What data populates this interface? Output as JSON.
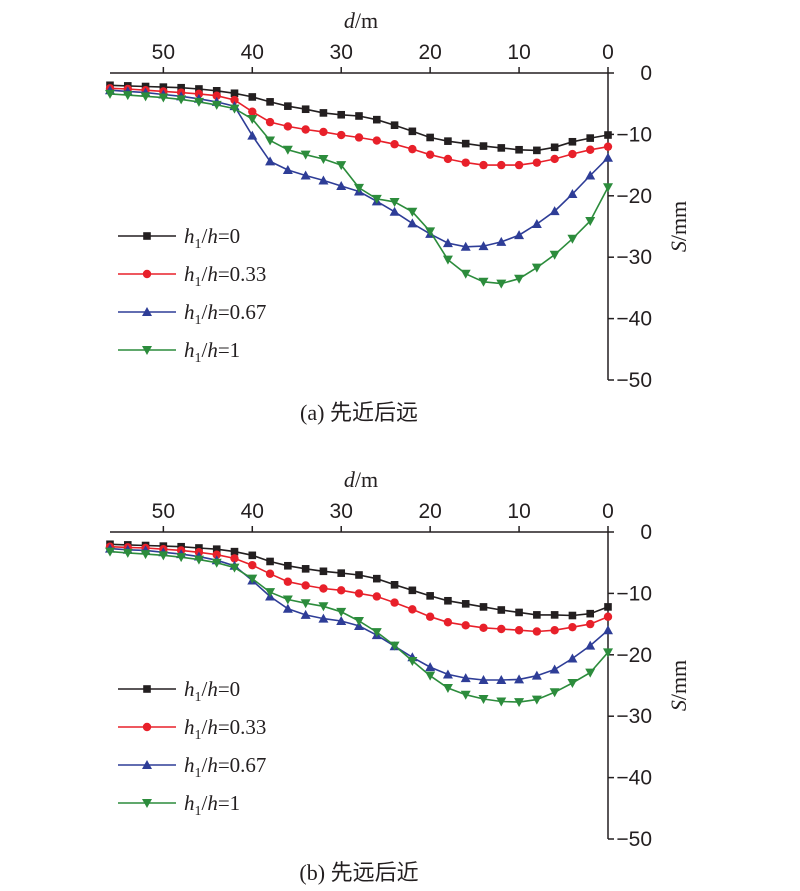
{
  "chart_data": [
    {
      "type": "line",
      "caption": "(a) 先近后远",
      "xlabel": {
        "var": "d",
        "unit": "/m"
      },
      "ylabel": {
        "var": "S",
        "unit": "/mm"
      },
      "x_axis_position": "top",
      "y_axis_position": "right",
      "x_reversed": true,
      "xlim": [
        56,
        0
      ],
      "ylim": [
        -50,
        0
      ],
      "xticks": [
        50,
        40,
        30,
        20,
        10,
        0
      ],
      "yticks": [
        0,
        -10,
        -20,
        -30,
        -40,
        -50
      ],
      "grid": false,
      "legend_position": "left-middle",
      "series": [
        {
          "name": {
            "a": "h",
            "sub": "1",
            "b": "/",
            "c": "h",
            "d": "=0"
          },
          "color": "#231f20",
          "marker": "square",
          "x": [
            56,
            54,
            52,
            50,
            48,
            46,
            44,
            42,
            40,
            38,
            36,
            34,
            32,
            30,
            28,
            26,
            24,
            22,
            20,
            18,
            16,
            14,
            12,
            10,
            8,
            6,
            4,
            2,
            0
          ],
          "y": [
            -2,
            -2.1,
            -2.2,
            -2.3,
            -2.4,
            -2.6,
            -2.9,
            -3.3,
            -3.9,
            -4.7,
            -5.4,
            -5.9,
            -6.5,
            -6.8,
            -7.0,
            -7.6,
            -8.5,
            -9.5,
            -10.5,
            -11.1,
            -11.5,
            -11.9,
            -12.2,
            -12.5,
            -12.6,
            -12.1,
            -11.2,
            -10.6,
            -10.1
          ]
        },
        {
          "name": {
            "a": "h",
            "sub": "1",
            "b": "/",
            "c": "h",
            "d": "=0.33"
          },
          "color": "#e8202a",
          "marker": "circle",
          "x": [
            56,
            54,
            52,
            50,
            48,
            46,
            44,
            42,
            40,
            38,
            36,
            34,
            32,
            30,
            28,
            26,
            24,
            22,
            20,
            18,
            16,
            14,
            12,
            10,
            8,
            6,
            4,
            2,
            0
          ],
          "y": [
            -2.5,
            -2.6,
            -2.8,
            -3.0,
            -3.2,
            -3.4,
            -3.7,
            -4.4,
            -6.3,
            -8.0,
            -8.7,
            -9.2,
            -9.6,
            -10.1,
            -10.5,
            -11.0,
            -11.6,
            -12.4,
            -13.3,
            -14.0,
            -14.6,
            -15.0,
            -15.0,
            -15.0,
            -14.6,
            -14.0,
            -13.2,
            -12.5,
            -12.0
          ]
        },
        {
          "name": {
            "a": "h",
            "sub": "1",
            "b": "/",
            "c": "h",
            "d": "=0.67"
          },
          "color": "#2e3d97",
          "marker": "triangle-up",
          "x": [
            56,
            54,
            52,
            50,
            48,
            46,
            44,
            42,
            40,
            38,
            36,
            34,
            32,
            30,
            28,
            26,
            24,
            22,
            20,
            18,
            16,
            14,
            12,
            10,
            8,
            6,
            4,
            2,
            0
          ],
          "y": [
            -2.8,
            -3.0,
            -3.2,
            -3.5,
            -3.8,
            -4.2,
            -4.7,
            -5.4,
            -10.2,
            -14.4,
            -15.8,
            -16.7,
            -17.5,
            -18.4,
            -19.3,
            -20.9,
            -22.6,
            -24.5,
            -26.2,
            -27.7,
            -28.3,
            -28.2,
            -27.5,
            -26.4,
            -24.6,
            -22.5,
            -19.7,
            -16.7,
            -13.8
          ]
        },
        {
          "name": {
            "a": "h",
            "sub": "1",
            "b": "/",
            "c": "h",
            "d": "=1"
          },
          "color": "#2c8c3c",
          "marker": "triangle-down",
          "x": [
            56,
            54,
            52,
            50,
            48,
            46,
            44,
            42,
            40,
            38,
            36,
            34,
            32,
            30,
            28,
            26,
            24,
            22,
            20,
            18,
            16,
            14,
            12,
            10,
            8,
            6,
            4,
            2,
            0
          ],
          "y": [
            -3.4,
            -3.6,
            -3.8,
            -4.0,
            -4.3,
            -4.7,
            -5.2,
            -5.8,
            -7.5,
            -11.0,
            -12.5,
            -13.3,
            -14.0,
            -15.0,
            -18.7,
            -20.5,
            -21.0,
            -22.6,
            -25.8,
            -30.4,
            -32.7,
            -34.0,
            -34.3,
            -33.5,
            -31.7,
            -29.6,
            -27.0,
            -24.1,
            -18.6
          ]
        }
      ]
    },
    {
      "type": "line",
      "caption": "(b) 先远后近",
      "xlabel": {
        "var": "d",
        "unit": "/m"
      },
      "ylabel": {
        "var": "S",
        "unit": "/mm"
      },
      "x_axis_position": "top",
      "y_axis_position": "right",
      "x_reversed": true,
      "xlim": [
        56,
        0
      ],
      "ylim": [
        -50,
        0
      ],
      "xticks": [
        50,
        40,
        30,
        20,
        10,
        0
      ],
      "yticks": [
        0,
        -10,
        -20,
        -30,
        -40,
        -50
      ],
      "grid": false,
      "legend_position": "left-middle",
      "series": [
        {
          "name": {
            "a": "h",
            "sub": "1",
            "b": "/",
            "c": "h",
            "d": "=0"
          },
          "color": "#231f20",
          "marker": "square",
          "x": [
            56,
            54,
            52,
            50,
            48,
            46,
            44,
            42,
            40,
            38,
            36,
            34,
            32,
            30,
            28,
            26,
            24,
            22,
            20,
            18,
            16,
            14,
            12,
            10,
            8,
            6,
            4,
            2,
            0
          ],
          "y": [
            -2,
            -2.1,
            -2.2,
            -2.3,
            -2.4,
            -2.6,
            -2.8,
            -3.2,
            -3.8,
            -4.8,
            -5.5,
            -6.0,
            -6.4,
            -6.7,
            -7.0,
            -7.6,
            -8.6,
            -9.5,
            -10.4,
            -11.2,
            -11.7,
            -12.2,
            -12.7,
            -13.1,
            -13.5,
            -13.5,
            -13.6,
            -13.3,
            -12.2
          ]
        },
        {
          "name": {
            "a": "h",
            "sub": "1",
            "b": "/",
            "c": "h",
            "d": "=0.33"
          },
          "color": "#e8202a",
          "marker": "circle",
          "x": [
            56,
            54,
            52,
            50,
            48,
            46,
            44,
            42,
            40,
            38,
            36,
            34,
            32,
            30,
            28,
            26,
            24,
            22,
            20,
            18,
            16,
            14,
            12,
            10,
            8,
            6,
            4,
            2,
            0
          ],
          "y": [
            -2.4,
            -2.5,
            -2.6,
            -2.8,
            -3.0,
            -3.3,
            -3.7,
            -4.3,
            -5.4,
            -6.8,
            -8.1,
            -8.7,
            -9.2,
            -9.5,
            -10.0,
            -10.5,
            -11.5,
            -12.6,
            -13.8,
            -14.7,
            -15.2,
            -15.6,
            -15.8,
            -16.0,
            -16.2,
            -16.0,
            -15.5,
            -15.0,
            -13.8
          ]
        },
        {
          "name": {
            "a": "h",
            "sub": "1",
            "b": "/",
            "c": "h",
            "d": "=0.67"
          },
          "color": "#2e3d97",
          "marker": "triangle-up",
          "x": [
            56,
            54,
            52,
            50,
            48,
            46,
            44,
            42,
            40,
            38,
            36,
            34,
            32,
            30,
            28,
            26,
            24,
            22,
            20,
            18,
            16,
            14,
            12,
            10,
            8,
            6,
            4,
            2,
            0
          ],
          "y": [
            -2.7,
            -2.9,
            -3.0,
            -3.3,
            -3.6,
            -4.0,
            -4.6,
            -5.5,
            -7.9,
            -10.5,
            -12.5,
            -13.5,
            -14.1,
            -14.5,
            -15.3,
            -16.8,
            -18.6,
            -20.4,
            -22.0,
            -23.2,
            -23.8,
            -24.1,
            -24.1,
            -24.0,
            -23.4,
            -22.4,
            -20.6,
            -18.5,
            -16.0
          ]
        },
        {
          "name": {
            "a": "h",
            "sub": "1",
            "b": "/",
            "c": "h",
            "d": "=1"
          },
          "color": "#2c8c3c",
          "marker": "triangle-down",
          "x": [
            56,
            54,
            52,
            50,
            48,
            46,
            44,
            42,
            40,
            38,
            36,
            34,
            32,
            30,
            28,
            26,
            24,
            22,
            20,
            18,
            16,
            14,
            12,
            10,
            8,
            6,
            4,
            2,
            0
          ],
          "y": [
            -3.2,
            -3.4,
            -3.6,
            -3.8,
            -4.1,
            -4.5,
            -5.0,
            -5.8,
            -7.6,
            -9.8,
            -11.0,
            -11.6,
            -12.1,
            -13.0,
            -14.5,
            -16.3,
            -18.5,
            -21.0,
            -23.4,
            -25.4,
            -26.5,
            -27.2,
            -27.6,
            -27.7,
            -27.3,
            -26.1,
            -24.6,
            -22.9,
            -19.6
          ]
        }
      ]
    }
  ]
}
